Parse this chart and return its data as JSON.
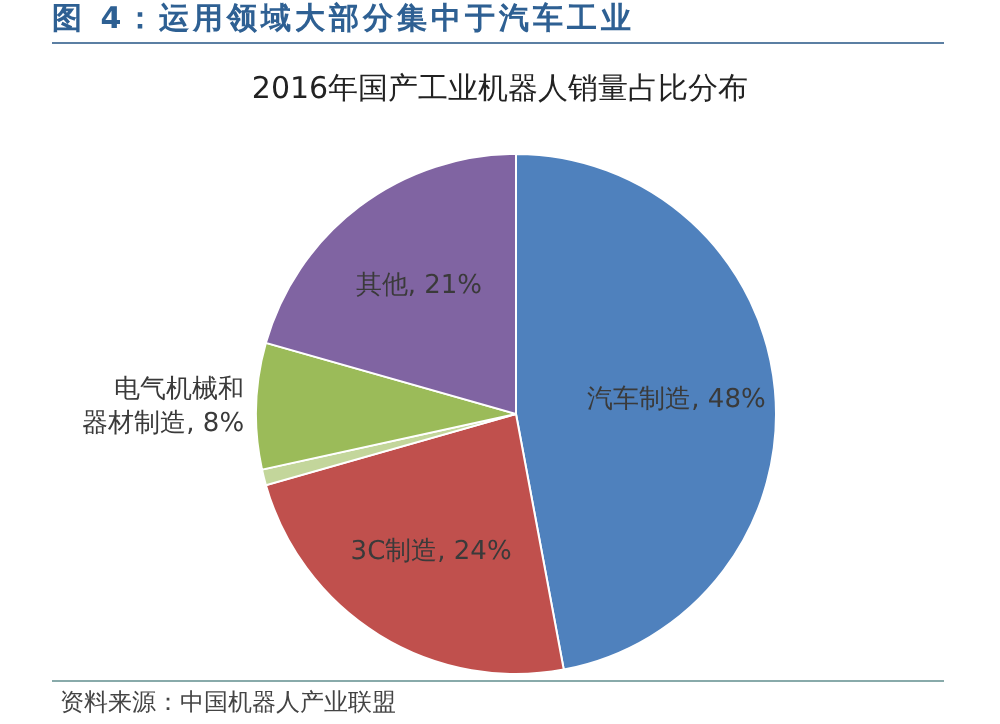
{
  "chart_data": {
    "type": "pie",
    "title": "图 4：运用领域大部分集中于汽车工业",
    "subtitle": "2016年国产工业机器人销量占比分布",
    "categories": [
      "汽车制造",
      "3C制造",
      null,
      "电气机械和器材制造",
      "其他"
    ],
    "values": [
      48,
      24,
      1,
      8,
      21
    ],
    "value_labels": [
      "48%",
      "24%",
      null,
      "8%",
      "21%"
    ],
    "colors": [
      "#4f81bd",
      "#c0504d",
      "#c3d69b",
      "#9bbb59",
      "#8064a2"
    ],
    "legend": false,
    "annotations": [
      "资料来源：中国机器人产业联盟"
    ]
  }
}
